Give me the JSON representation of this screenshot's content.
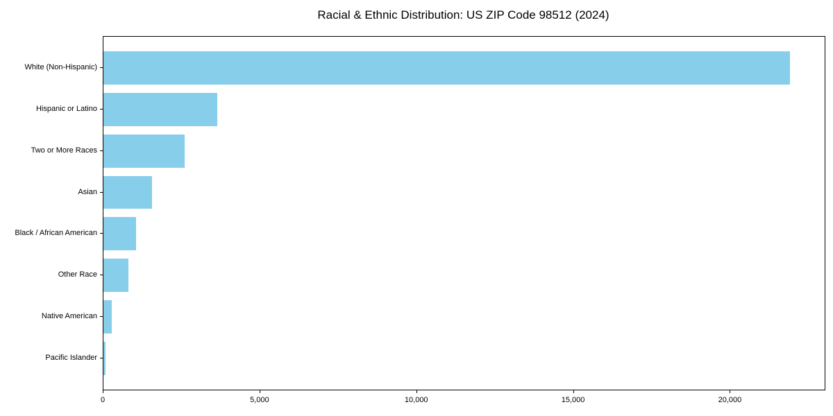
{
  "chart_data": {
    "type": "bar",
    "orientation": "horizontal",
    "title": "Racial & Ethnic Distribution: US ZIP Code 98512 (2024)",
    "categories": [
      "White (Non-Hispanic)",
      "Hispanic or Latino",
      "Two or More Races",
      "Asian",
      "Black / African American",
      "Other Race",
      "Native American",
      "Pacific Islander"
    ],
    "values": [
      21900,
      3620,
      2580,
      1560,
      1040,
      800,
      270,
      60
    ],
    "xlabel": "",
    "ylabel": "",
    "xlim": [
      0,
      23000
    ],
    "x_ticks": [
      0,
      5000,
      10000,
      15000,
      20000
    ],
    "x_tick_labels": [
      "0",
      "5,000",
      "10,000",
      "15,000",
      "20,000"
    ],
    "bar_color": "#87CEEB",
    "axis_color": "#000000",
    "background_color": "#ffffff",
    "grid": false,
    "legend_position": "none"
  }
}
